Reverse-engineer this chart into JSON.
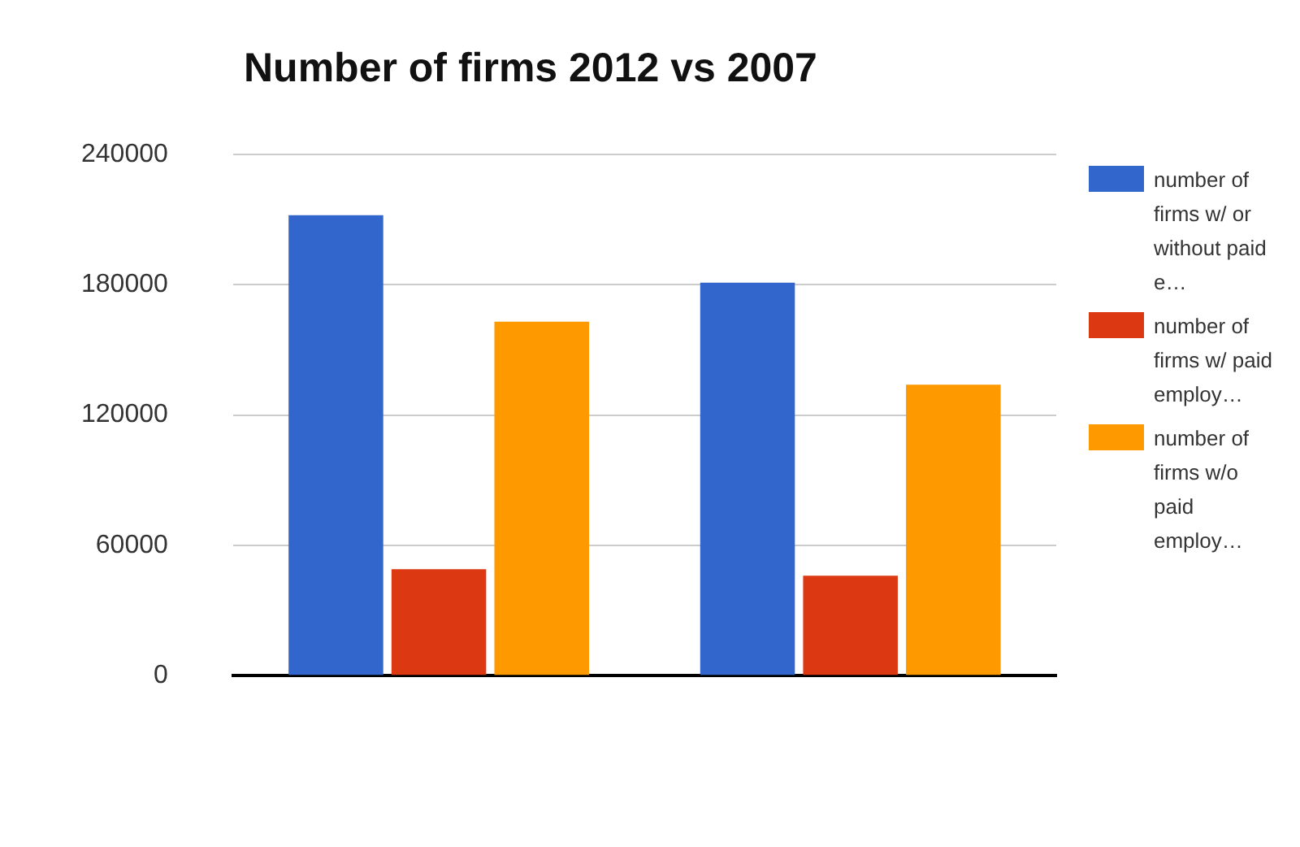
{
  "chart_data": {
    "type": "bar",
    "title": "Number of firms 2012 vs 2007",
    "categories": [
      null,
      null
    ],
    "series": [
      {
        "name": "number of firms w/ or without paid e…",
        "color": "#3366cc",
        "values": [
          212000,
          181000
        ]
      },
      {
        "name": "number of firms w/ paid employ…",
        "color": "#dc3912",
        "values": [
          49000,
          46000
        ]
      },
      {
        "name": "number of firms w/o paid employ…",
        "color": "#ff9900",
        "values": [
          163000,
          134000
        ]
      }
    ],
    "ylim": [
      0,
      240000
    ],
    "yticks": [
      0,
      60000,
      120000,
      180000,
      240000
    ],
    "grid": "y",
    "legend": "right"
  }
}
